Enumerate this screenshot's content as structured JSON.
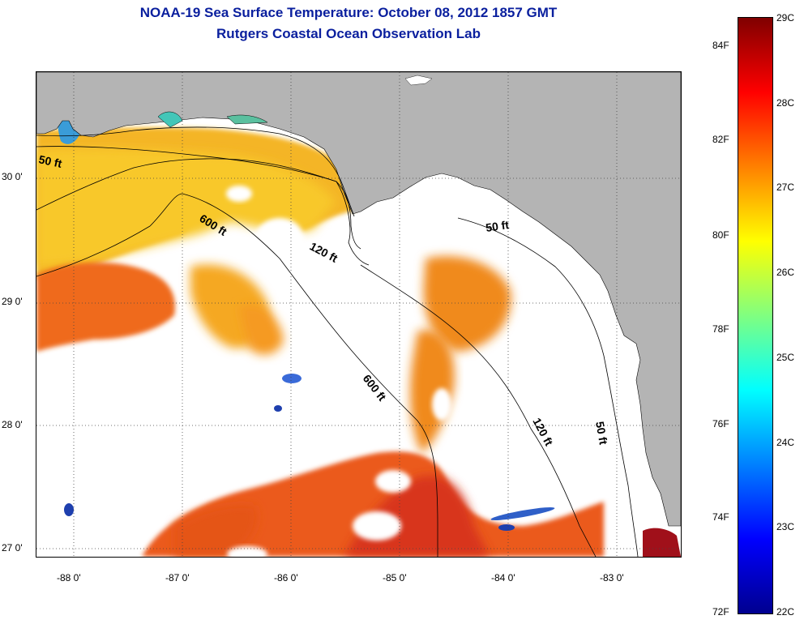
{
  "header": {
    "title": "NOAA-19 Sea Surface Temperature:  October 08, 2012 1857 GMT",
    "subtitle": "Rutgers Coastal Ocean Observation Lab"
  },
  "axes": {
    "latitude_labels": [
      "30 0'",
      "29 0'",
      "28 0'",
      "27 0'"
    ],
    "longitude_labels": [
      "-88 0'",
      "-87 0'",
      "-86 0'",
      "-85 0'",
      "-84 0'",
      "-83 0'"
    ]
  },
  "contours": [
    {
      "label": "50 ft"
    },
    {
      "label": "600 ft"
    },
    {
      "label": "120 ft"
    },
    {
      "label": "50 ft"
    },
    {
      "label": "600 ft"
    },
    {
      "label": "120 ft"
    },
    {
      "label": "50 ft"
    }
  ],
  "colorbar": {
    "fahrenheit_labels": [
      "84F",
      "82F",
      "80F",
      "78F",
      "76F",
      "74F",
      "72F"
    ],
    "celsius_labels": [
      "29C",
      "28C",
      "27C",
      "26C",
      "25C",
      "24C",
      "23C",
      "22C"
    ],
    "colors": [
      "#00008f",
      "#0000ff",
      "#0080ff",
      "#00ffff",
      "#80ff80",
      "#ffff00",
      "#ff8000",
      "#ff0000",
      "#800000"
    ]
  },
  "colors": {
    "title": "#0a1f9e",
    "land": "#b4b4b4",
    "warm_sst": "#f07a18",
    "hot_sst": "#e4401c",
    "mild_sst": "#f6ad20",
    "cool_sst": "#f4cc28"
  }
}
